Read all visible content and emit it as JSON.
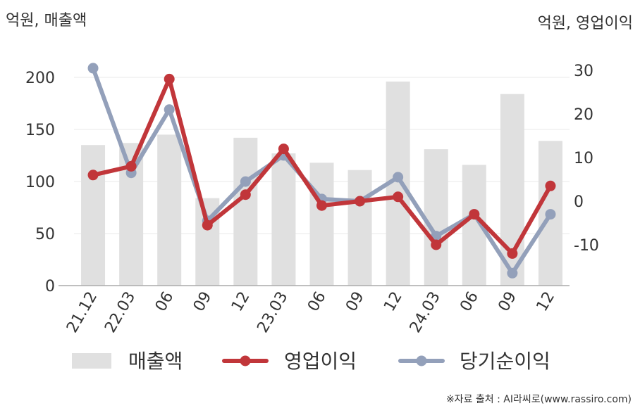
{
  "chart_data": {
    "type": "bar+line",
    "left_axis_unit": "억원, 매출액",
    "right_axis_unit": "억원, 영업이익",
    "categories": [
      "21.12",
      "22.03",
      "06",
      "09",
      "12",
      "23.03",
      "06",
      "09",
      "12",
      "24.03",
      "06",
      "09",
      "12"
    ],
    "left_ylim": [
      0,
      200
    ],
    "left_ticks": [
      "0",
      "50",
      "100",
      "150",
      "200"
    ],
    "right_ylim": [
      -20,
      30
    ],
    "right_ticks": [
      "-10",
      "0",
      "10",
      "20",
      "30"
    ],
    "grid": true,
    "legend_position": "bottom",
    "series": [
      {
        "name": "매출액",
        "type": "bar",
        "axis": "left",
        "color": "#e0e0e0",
        "values": [
          135,
          137,
          145,
          84,
          142,
          127,
          118,
          111,
          196,
          131,
          116,
          184,
          139
        ]
      },
      {
        "name": "영업이익",
        "type": "line",
        "axis": "right",
        "color": "#c1363a",
        "values": [
          6,
          8,
          28,
          -5.5,
          1.5,
          12,
          -1,
          0,
          1,
          -10,
          -3,
          -12,
          3.5
        ]
      },
      {
        "name": "당기순이익",
        "type": "line",
        "axis": "right",
        "color": "#93a0ba",
        "values": [
          30.5,
          6.5,
          21,
          -4.5,
          4.5,
          10.5,
          0.5,
          0,
          5.5,
          -8,
          -3,
          -16.5,
          -3
        ]
      }
    ]
  },
  "source": "※자료 출처 : AI라씨로(www.rassiro.com)"
}
